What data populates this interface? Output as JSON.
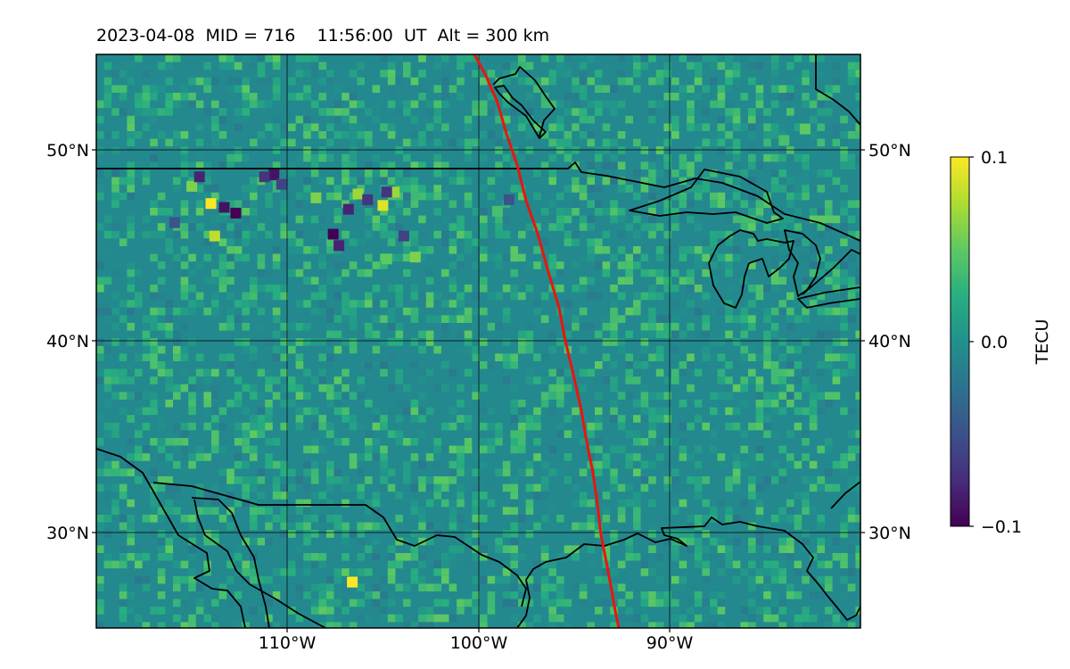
{
  "title": "2023-04-08  MID = 716    11:56:00  UT  Alt = 300 km",
  "map": {
    "x_ticks": [
      {
        "lon": -110,
        "label": "110°W"
      },
      {
        "lon": -100,
        "label": "100°W"
      },
      {
        "lon": -90,
        "label": "90°W"
      }
    ],
    "y_ticks": [
      {
        "lat": 50,
        "label": "50°N"
      },
      {
        "lat": 40,
        "label": "40°N"
      },
      {
        "lat": 30,
        "label": "30°N"
      }
    ],
    "lon_range": [
      -120,
      -80
    ],
    "lat_range": [
      25,
      55
    ],
    "grid": true,
    "background_tecu": 0.015,
    "eclipse_path_color": "#e8160c",
    "anomalies": [
      {
        "lon": -106.6,
        "lat": 27.4,
        "tecu": 0.1
      },
      {
        "lon": -114.0,
        "lat": 47.2,
        "tecu": 0.1
      },
      {
        "lon": -113.8,
        "lat": 45.5,
        "tecu": 0.08
      },
      {
        "lon": -105.0,
        "lat": 47.1,
        "tecu": 0.09
      },
      {
        "lon": -106.3,
        "lat": 47.7,
        "tecu": 0.07
      },
      {
        "lon": -104.4,
        "lat": 47.8,
        "tecu": 0.07
      },
      {
        "lon": -108.5,
        "lat": 47.5,
        "tecu": 0.06
      },
      {
        "lon": -115.0,
        "lat": 48.1,
        "tecu": 0.06
      },
      {
        "lon": -103.3,
        "lat": 44.4,
        "tecu": 0.06
      },
      {
        "lon": -104.8,
        "lat": 44.3,
        "tecu": 0.05
      },
      {
        "lon": -82.9,
        "lat": 51.1,
        "tecu": 0.05
      },
      {
        "lon": -84.0,
        "lat": 50.5,
        "tecu": 0.04
      },
      {
        "lon": -99.0,
        "lat": 46.8,
        "tecu": 0.04
      },
      {
        "lon": -112.7,
        "lat": 46.7,
        "tecu": -0.1
      },
      {
        "lon": -113.3,
        "lat": 47.0,
        "tecu": -0.09
      },
      {
        "lon": -110.7,
        "lat": 48.7,
        "tecu": -0.09
      },
      {
        "lon": -107.6,
        "lat": 45.6,
        "tecu": -0.1
      },
      {
        "lon": -107.3,
        "lat": 45.0,
        "tecu": -0.08
      },
      {
        "lon": -106.8,
        "lat": 46.9,
        "tecu": -0.08
      },
      {
        "lon": -105.8,
        "lat": 47.4,
        "tecu": -0.07
      },
      {
        "lon": -104.8,
        "lat": 47.8,
        "tecu": -0.07
      },
      {
        "lon": -103.9,
        "lat": 45.5,
        "tecu": -0.06
      },
      {
        "lon": -114.6,
        "lat": 48.6,
        "tecu": -0.08
      },
      {
        "lon": -111.2,
        "lat": 48.6,
        "tecu": -0.07
      },
      {
        "lon": -110.3,
        "lat": 48.2,
        "tecu": -0.06
      },
      {
        "lon": -115.9,
        "lat": 46.2,
        "tecu": -0.05
      },
      {
        "lon": -98.4,
        "lat": 47.4,
        "tecu": -0.05
      }
    ]
  },
  "colorbar": {
    "label": "TECU",
    "ticks": [
      {
        "value": 0.1,
        "label": "0.1"
      },
      {
        "value": 0.0,
        "label": "0.0"
      },
      {
        "value": -0.1,
        "label": "−0.1"
      }
    ],
    "range": [
      -0.1,
      0.1
    ],
    "colormap": "viridis"
  }
}
